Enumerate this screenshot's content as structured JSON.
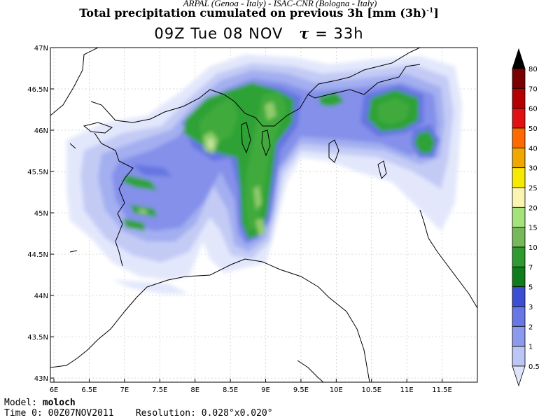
{
  "header": {
    "institutions": "ARPAL (Genoa - Italy)  -  ISAC-CNR (Bologna - Italy)",
    "title": "Total precipitation cumulated on previous 3h [mm (3h)",
    "title_exp": "-1",
    "title_tail": "]",
    "time_label": "09Z Tue 08 NOV",
    "tau_label": "= 33h",
    "tau_symbol": "τ"
  },
  "axes": {
    "lon_ticks": [
      "6E",
      "6.5E",
      "7E",
      "7.5E",
      "8E",
      "8.5E",
      "9E",
      "9.5E",
      "10E",
      "10.5E",
      "11E",
      "11.5E"
    ],
    "lat_ticks": [
      "47N",
      "46.5N",
      "46N",
      "45.5N",
      "45N",
      "44.5N",
      "44N",
      "43.5N",
      "43N"
    ],
    "lon_range": [
      5.95,
      12.0
    ],
    "lat_range": [
      42.95,
      47.0
    ]
  },
  "colorbar": {
    "labels": [
      "80",
      "70",
      "60",
      "50",
      "40",
      "30",
      "25",
      "20",
      "15",
      "10",
      "7",
      "5",
      "3",
      "2",
      "1",
      "0.5"
    ],
    "colors": [
      "#000000",
      "#7a0000",
      "#b40000",
      "#e11111",
      "#ff6a00",
      "#f0a800",
      "#f5ea00",
      "#faf5b0",
      "#a4e27a",
      "#77b95a",
      "#2f9a2f",
      "#0f7d1b",
      "#3c4fd2",
      "#6977e6",
      "#8c9aee",
      "#bcc6f5",
      "#dfe4fb"
    ]
  },
  "map_colors": {
    "rain": [
      "#e2e7fb",
      "#c3cbf5",
      "#a3aff0",
      "#8490ea",
      "#6575e2",
      "#4a58d4",
      "#2fa236",
      "#3faa3c",
      "#8fcc6a",
      "#c8e4a0"
    ],
    "coast": "#000000",
    "grid": "#c8c8c8"
  },
  "footer": {
    "model_label": "Model:",
    "model_value": "moloch",
    "time0_label": "Time 0:",
    "time0_value": "00Z07NOV2011",
    "resolution_label": "Resolution:",
    "resolution_value": "0.028°x0.020°"
  }
}
